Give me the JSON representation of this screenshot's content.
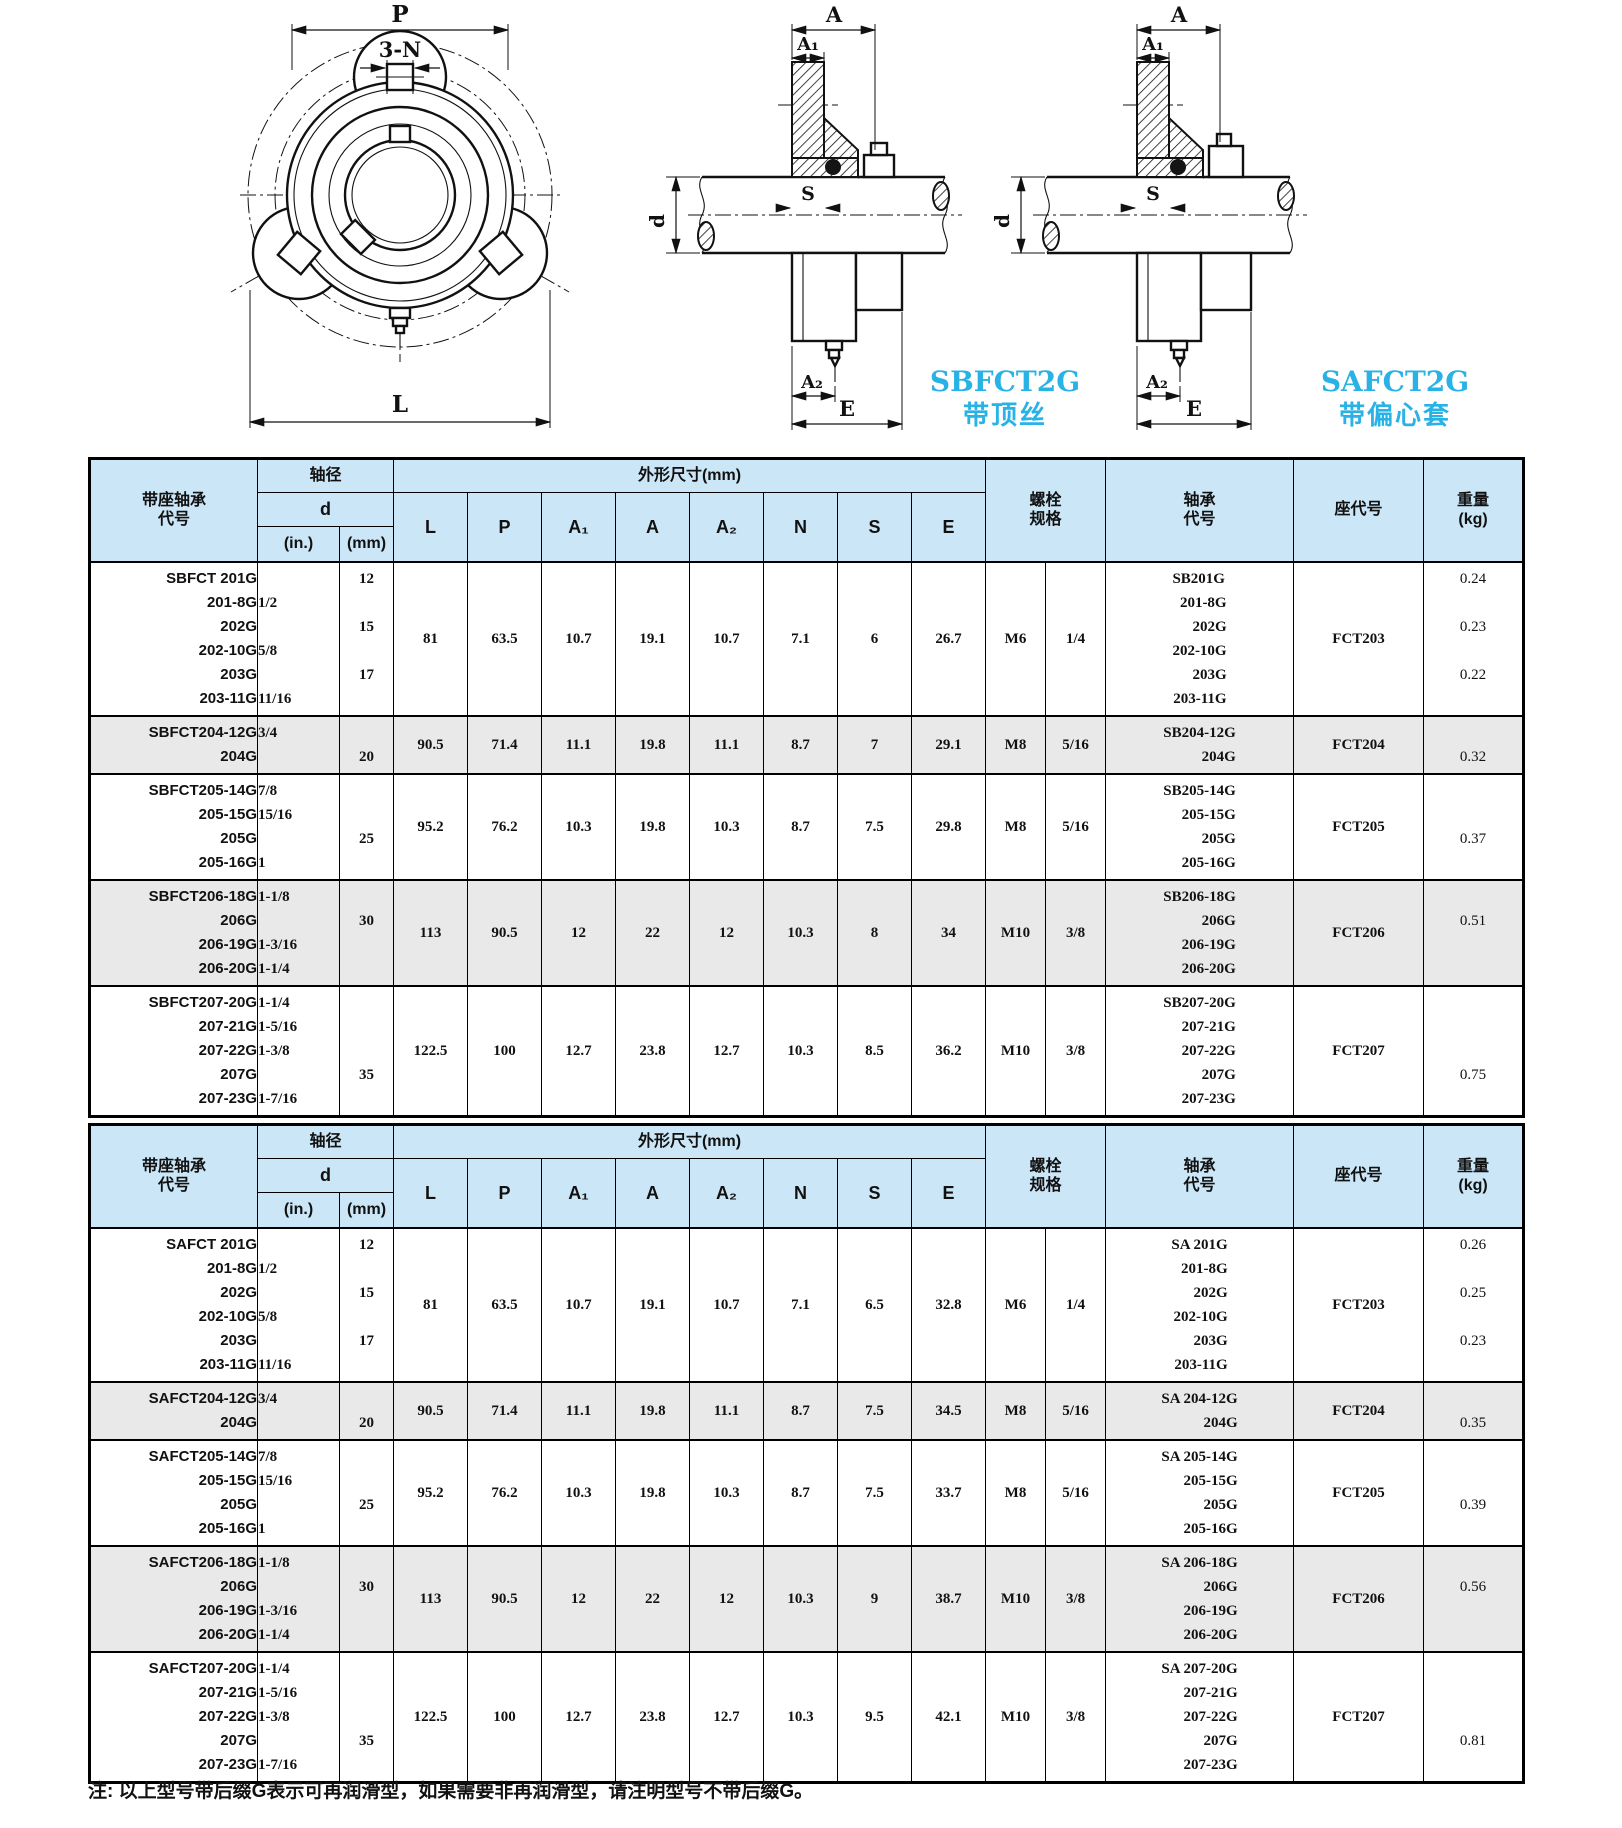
{
  "drawing": {
    "front": {
      "p": "P",
      "n": "3-N",
      "l": "L"
    },
    "side": {
      "a": "A",
      "a1": "A₁",
      "s": "S",
      "d": "d",
      "a2": "A₂",
      "e": "E"
    },
    "captions": [
      {
        "title": "SBFCT2G",
        "subtitle": "带顶丝"
      },
      {
        "title": "SAFCT2G",
        "subtitle": "带偏心套"
      }
    ],
    "accent_color": "#29b2e6"
  },
  "headers": {
    "code": "带座轴承\n代号",
    "shaft": "轴径",
    "d": "d",
    "in": "(in.)",
    "mm": "(mm)",
    "dims_group": "外形尺寸(mm)",
    "dims": [
      "L",
      "P",
      "A₁",
      "A",
      "A₂",
      "N",
      "S",
      "E"
    ],
    "bolt": "螺栓\n规格",
    "bearing": "轴承\n代号",
    "seat": "座代号",
    "weight": "重量\n(kg)"
  },
  "tables": [
    {
      "name": "SBFCT2G",
      "blocks": [
        {
          "shaded": false,
          "codes": [
            "SBFCT 201G",
            "201-8G",
            "202G",
            "202-10G",
            "203G",
            "203-11G"
          ],
          "inches": [
            "",
            "1/2",
            "",
            "5/8",
            "",
            "11/16"
          ],
          "mm": [
            {
              "v": "12",
              "row": 0
            },
            {
              "v": "15",
              "row": 2
            },
            {
              "v": "17",
              "row": 4
            }
          ],
          "dims": [
            "81",
            "63.5",
            "10.7",
            "19.1",
            "10.7",
            "7.1",
            "6",
            "26.7"
          ],
          "bolt": [
            "M6",
            "1/4"
          ],
          "bearings": [
            "SB201G",
            "201-8G",
            "202G",
            "202-10G",
            "203G",
            "203-11G"
          ],
          "seat": "FCT203",
          "weights": [
            {
              "v": "0.24",
              "row": 0
            },
            {
              "v": "0.23",
              "row": 2
            },
            {
              "v": "0.22",
              "row": 4
            }
          ]
        },
        {
          "shaded": true,
          "codes": [
            "SBFCT204-12G",
            "204G"
          ],
          "inches": [
            "3/4",
            ""
          ],
          "mm": [
            {
              "v": "20",
              "row": 1
            }
          ],
          "dims": [
            "90.5",
            "71.4",
            "11.1",
            "19.8",
            "11.1",
            "8.7",
            "7",
            "29.1"
          ],
          "bolt": [
            "M8",
            "5/16"
          ],
          "bearings": [
            "SB204-12G",
            "204G"
          ],
          "seat": "FCT204",
          "weights": [
            {
              "v": "0.32",
              "row": 1
            }
          ]
        },
        {
          "shaded": false,
          "codes": [
            "SBFCT205-14G",
            "205-15G",
            "205G",
            "205-16G"
          ],
          "inches": [
            "7/8",
            "15/16",
            "",
            "1"
          ],
          "mm": [
            {
              "v": "25",
              "row": 2
            }
          ],
          "dims": [
            "95.2",
            "76.2",
            "10.3",
            "19.8",
            "10.3",
            "8.7",
            "7.5",
            "29.8"
          ],
          "bolt": [
            "M8",
            "5/16"
          ],
          "bearings": [
            "SB205-14G",
            "205-15G",
            "205G",
            "205-16G"
          ],
          "seat": "FCT205",
          "weights": [
            {
              "v": "0.37",
              "row": 2
            }
          ]
        },
        {
          "shaded": true,
          "codes": [
            "SBFCT206-18G",
            "206G",
            "206-19G",
            "206-20G"
          ],
          "inches": [
            "1-1/8",
            "",
            "1-3/16",
            "1-1/4"
          ],
          "mm": [
            {
              "v": "30",
              "row": 1
            }
          ],
          "dims": [
            "113",
            "90.5",
            "12",
            "22",
            "12",
            "10.3",
            "8",
            "34"
          ],
          "bolt": [
            "M10",
            "3/8"
          ],
          "bearings": [
            "SB206-18G",
            "206G",
            "206-19G",
            "206-20G"
          ],
          "seat": "FCT206",
          "weights": [
            {
              "v": "0.51",
              "row": 1
            }
          ]
        },
        {
          "shaded": false,
          "codes": [
            "SBFCT207-20G",
            "207-21G",
            "207-22G",
            "207G",
            "207-23G"
          ],
          "inches": [
            "1-1/4",
            "1-5/16",
            "1-3/8",
            "",
            "1-7/16"
          ],
          "mm": [
            {
              "v": "35",
              "row": 3
            }
          ],
          "dims": [
            "122.5",
            "100",
            "12.7",
            "23.8",
            "12.7",
            "10.3",
            "8.5",
            "36.2"
          ],
          "bolt": [
            "M10",
            "3/8"
          ],
          "bearings": [
            "SB207-20G",
            "207-21G",
            "207-22G",
            "207G",
            "207-23G"
          ],
          "seat": "FCT207",
          "weights": [
            {
              "v": "0.75",
              "row": 3
            }
          ]
        }
      ]
    },
    {
      "name": "SAFCT2G",
      "blocks": [
        {
          "shaded": false,
          "codes": [
            "SAFCT 201G",
            "201-8G",
            "202G",
            "202-10G",
            "203G",
            "203-11G"
          ],
          "inches": [
            "",
            "1/2",
            "",
            "5/8",
            "",
            "11/16"
          ],
          "mm": [
            {
              "v": "12",
              "row": 0
            },
            {
              "v": "15",
              "row": 2
            },
            {
              "v": "17",
              "row": 4
            }
          ],
          "dims": [
            "81",
            "63.5",
            "10.7",
            "19.1",
            "10.7",
            "7.1",
            "6.5",
            "32.8"
          ],
          "bolt": [
            "M6",
            "1/4"
          ],
          "bearings": [
            "SA 201G",
            "201-8G",
            "202G",
            "202-10G",
            "203G",
            "203-11G"
          ],
          "seat": "FCT203",
          "weights": [
            {
              "v": "0.26",
              "row": 0
            },
            {
              "v": "0.25",
              "row": 2
            },
            {
              "v": "0.23",
              "row": 4
            }
          ]
        },
        {
          "shaded": true,
          "codes": [
            "SAFCT204-12G",
            "204G"
          ],
          "inches": [
            "3/4",
            ""
          ],
          "mm": [
            {
              "v": "20",
              "row": 1
            }
          ],
          "dims": [
            "90.5",
            "71.4",
            "11.1",
            "19.8",
            "11.1",
            "8.7",
            "7.5",
            "34.5"
          ],
          "bolt": [
            "M8",
            "5/16"
          ],
          "bearings": [
            "SA 204-12G",
            "204G"
          ],
          "seat": "FCT204",
          "weights": [
            {
              "v": "0.35",
              "row": 1
            }
          ]
        },
        {
          "shaded": false,
          "codes": [
            "SAFCT205-14G",
            "205-15G",
            "205G",
            "205-16G"
          ],
          "inches": [
            "7/8",
            "15/16",
            "",
            "1"
          ],
          "mm": [
            {
              "v": "25",
              "row": 2
            }
          ],
          "dims": [
            "95.2",
            "76.2",
            "10.3",
            "19.8",
            "10.3",
            "8.7",
            "7.5",
            "33.7"
          ],
          "bolt": [
            "M8",
            "5/16"
          ],
          "bearings": [
            "SA 205-14G",
            "205-15G",
            "205G",
            "205-16G"
          ],
          "seat": "FCT205",
          "weights": [
            {
              "v": "0.39",
              "row": 2
            }
          ]
        },
        {
          "shaded": true,
          "codes": [
            "SAFCT206-18G",
            "206G",
            "206-19G",
            "206-20G"
          ],
          "inches": [
            "1-1/8",
            "",
            "1-3/16",
            "1-1/4"
          ],
          "mm": [
            {
              "v": "30",
              "row": 1
            }
          ],
          "dims": [
            "113",
            "90.5",
            "12",
            "22",
            "12",
            "10.3",
            "9",
            "38.7"
          ],
          "bolt": [
            "M10",
            "3/8"
          ],
          "bearings": [
            "SA 206-18G",
            "206G",
            "206-19G",
            "206-20G"
          ],
          "seat": "FCT206",
          "weights": [
            {
              "v": "0.56",
              "row": 1
            }
          ]
        },
        {
          "shaded": false,
          "codes": [
            "SAFCT207-20G",
            "207-21G",
            "207-22G",
            "207G",
            "207-23G"
          ],
          "inches": [
            "1-1/4",
            "1-5/16",
            "1-3/8",
            "",
            "1-7/16"
          ],
          "mm": [
            {
              "v": "35",
              "row": 3
            }
          ],
          "dims": [
            "122.5",
            "100",
            "12.7",
            "23.8",
            "12.7",
            "10.3",
            "9.5",
            "42.1"
          ],
          "bolt": [
            "M10",
            "3/8"
          ],
          "bearings": [
            "SA 207-20G",
            "207-21G",
            "207-22G",
            "207G",
            "207-23G"
          ],
          "seat": "FCT207",
          "weights": [
            {
              "v": "0.81",
              "row": 3
            }
          ]
        }
      ]
    }
  ],
  "note": "注:  以上型号带后缀G表示可再润滑型，如果需要非再润滑型，请注明型号不带后缀G。"
}
